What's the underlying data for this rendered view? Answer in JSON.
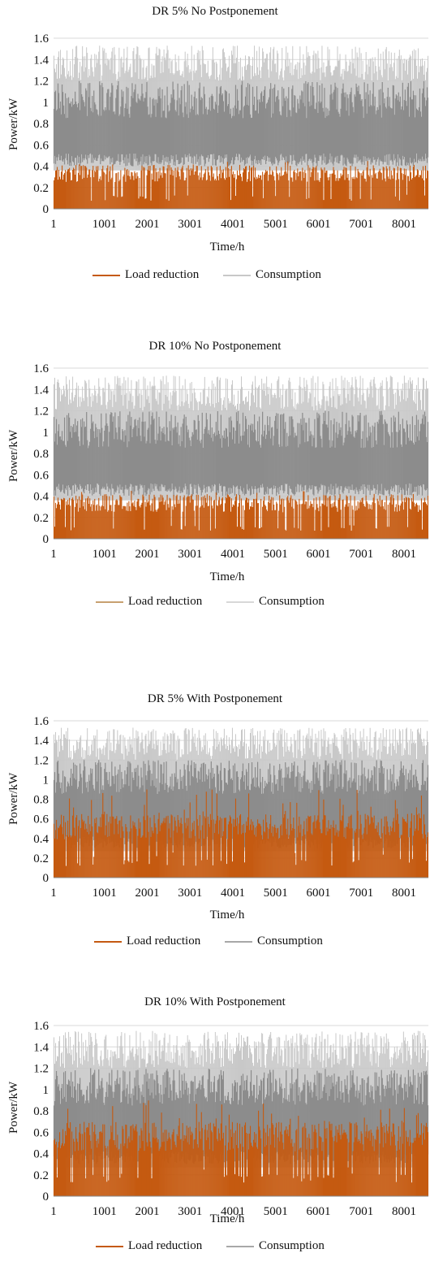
{
  "colors": {
    "load_reduction": "#c55a11",
    "consumption": "#8c8c8c",
    "consumption_light": "#c8c8c8",
    "grid": "#d9d9d9"
  },
  "chart_data": [
    {
      "type": "line",
      "title": "DR 5% No Postponement",
      "xlabel": "Time/h",
      "ylabel": "Power/kW",
      "x_ticks": [
        "1",
        "1001",
        "2001",
        "3001",
        "4001",
        "5001",
        "6001",
        "7001",
        "8001"
      ],
      "y_ticks": [
        "0",
        "0.2",
        "0.4",
        "0.6",
        "0.8",
        "1",
        "1.2",
        "1.4",
        "1.6"
      ],
      "xlim": [
        1,
        8760
      ],
      "ylim": [
        0,
        1.6
      ],
      "grid": true,
      "legend_position": "bottom",
      "series": [
        {
          "name": "Load reduction",
          "typical_range": [
            0.0,
            0.42
          ],
          "max": 0.45
        },
        {
          "name": "Consumption",
          "typical_range": [
            0.4,
            1.2
          ],
          "max": 1.53
        }
      ]
    },
    {
      "type": "line",
      "title": "DR 10% No Postponement",
      "xlabel": "Time/h",
      "ylabel": "Power/kW",
      "x_ticks": [
        "1",
        "1001",
        "2001",
        "3001",
        "4001",
        "5001",
        "6001",
        "7001",
        "8001"
      ],
      "y_ticks": [
        "0",
        "0.2",
        "0.4",
        "0.6",
        "0.8",
        "1",
        "1.2",
        "1.4",
        "1.6"
      ],
      "xlim": [
        1,
        8760
      ],
      "ylim": [
        0,
        1.6
      ],
      "grid": true,
      "legend_position": "bottom",
      "series": [
        {
          "name": "Load reduction",
          "typical_range": [
            0.0,
            0.42
          ],
          "max": 0.45
        },
        {
          "name": "Consumption",
          "typical_range": [
            0.4,
            1.2
          ],
          "max": 1.53
        }
      ]
    },
    {
      "type": "line",
      "title": "DR 5% With Postponement",
      "xlabel": "Time/h",
      "ylabel": "Power/kW",
      "x_ticks": [
        "1",
        "1001",
        "2001",
        "3001",
        "4001",
        "5001",
        "6001",
        "7001",
        "8001"
      ],
      "y_ticks": [
        "0",
        "0.2",
        "0.4",
        "0.6",
        "0.8",
        "1",
        "1.2",
        "1.4",
        "1.6"
      ],
      "xlim": [
        1,
        8760
      ],
      "ylim": [
        0,
        1.6
      ],
      "grid": true,
      "legend_position": "bottom",
      "series": [
        {
          "name": "Load reduction",
          "typical_range": [
            0.0,
            0.65
          ],
          "max": 0.9
        },
        {
          "name": "Consumption",
          "typical_range": [
            0.3,
            1.2
          ],
          "max": 1.53
        }
      ]
    },
    {
      "type": "line",
      "title": "DR 10% With Postponement",
      "xlabel": "Time/h",
      "ylabel": "Power/kW",
      "x_ticks": [
        "1",
        "1001",
        "2001",
        "3001",
        "4001",
        "5001",
        "6001",
        "7001",
        "8001"
      ],
      "y_ticks": [
        "0",
        "0.2",
        "0.4",
        "0.6",
        "0.8",
        "1",
        "1.2",
        "1.4",
        "1.6"
      ],
      "xlim": [
        1,
        8760
      ],
      "ylim": [
        0,
        1.6
      ],
      "grid": true,
      "legend_position": "bottom",
      "series": [
        {
          "name": "Load reduction",
          "typical_range": [
            0.0,
            0.7
          ],
          "max": 0.9
        },
        {
          "name": "Consumption",
          "typical_range": [
            0.3,
            1.2
          ],
          "max": 1.55
        }
      ]
    }
  ]
}
